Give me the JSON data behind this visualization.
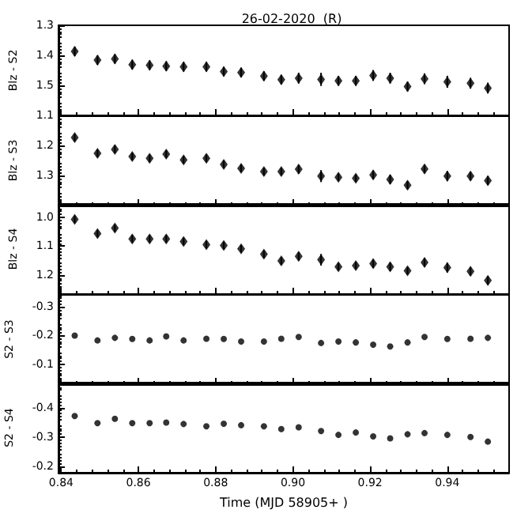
{
  "chart_data": [
    {
      "type": "scatter",
      "title": "26-02-2020  (R)",
      "ylabel": "Blz - S2",
      "marker": "diamond",
      "tick_labels": "y",
      "xlim": [
        0.8393,
        0.956
      ],
      "xticks": [
        0.84,
        0.86,
        0.88,
        0.9,
        0.92,
        0.94
      ],
      "ylim": [
        1.6,
        1.3
      ],
      "yticks": [
        1.3,
        1.4,
        1.5
      ],
      "x": [
        0.8435,
        0.8494,
        0.8539,
        0.8584,
        0.8629,
        0.8672,
        0.8717,
        0.8776,
        0.8821,
        0.8866,
        0.8925,
        0.897,
        0.9015,
        0.9073,
        0.9118,
        0.9163,
        0.9208,
        0.9252,
        0.9297,
        0.9341,
        0.94,
        0.946,
        0.9505
      ],
      "values": [
        1.387,
        1.416,
        1.412,
        1.431,
        1.433,
        1.436,
        1.438,
        1.438,
        1.454,
        1.457,
        1.469,
        1.481,
        1.476,
        1.48,
        1.485,
        1.485,
        1.467,
        1.476,
        1.504,
        1.478,
        1.488,
        1.493,
        1.509
      ],
      "errors": [
        0.016,
        0.016,
        0.016,
        0.016,
        0.016,
        0.016,
        0.016,
        0.016,
        0.016,
        0.016,
        0.016,
        0.016,
        0.018,
        0.022,
        0.016,
        0.016,
        0.018,
        0.018,
        0.016,
        0.018,
        0.02,
        0.018,
        0.018
      ]
    },
    {
      "type": "scatter",
      "ylabel": "Blz - S3",
      "marker": "diamond",
      "tick_labels": "y",
      "xlim": [
        0.8393,
        0.956
      ],
      "xticks": [
        0.84,
        0.86,
        0.88,
        0.9,
        0.92,
        0.94
      ],
      "ylim": [
        1.4,
        1.1
      ],
      "yticks": [
        1.1,
        1.2,
        1.3
      ],
      "x": [
        0.8435,
        0.8494,
        0.8539,
        0.8584,
        0.8629,
        0.8672,
        0.8717,
        0.8776,
        0.8821,
        0.8866,
        0.8925,
        0.897,
        0.9015,
        0.9073,
        0.9118,
        0.9163,
        0.9208,
        0.9252,
        0.9297,
        0.9341,
        0.94,
        0.946,
        0.9505
      ],
      "values": [
        1.174,
        1.226,
        1.213,
        1.237,
        1.243,
        1.229,
        1.248,
        1.243,
        1.263,
        1.276,
        1.287,
        1.287,
        1.279,
        1.302,
        1.306,
        1.309,
        1.298,
        1.313,
        1.332,
        1.278,
        1.302,
        1.302,
        1.317
      ],
      "errors": [
        0.013,
        0.013,
        0.013,
        0.013,
        0.013,
        0.013,
        0.013,
        0.013,
        0.013,
        0.013,
        0.013,
        0.013,
        0.015,
        0.02,
        0.013,
        0.013,
        0.015,
        0.015,
        0.013,
        0.015,
        0.017,
        0.015,
        0.015
      ]
    },
    {
      "type": "scatter",
      "ylabel": "Blz - S4",
      "marker": "diamond",
      "tick_labels": "y",
      "xlim": [
        0.8393,
        0.956
      ],
      "xticks": [
        0.84,
        0.86,
        0.88,
        0.9,
        0.92,
        0.94
      ],
      "ylim": [
        1.265,
        0.955
      ],
      "yticks": [
        {
          "value": 1.0,
          "label": "1.0"
        },
        1.1,
        1.2
      ],
      "x": [
        0.8435,
        0.8494,
        0.8539,
        0.8584,
        0.8629,
        0.8672,
        0.8717,
        0.8776,
        0.8821,
        0.8866,
        0.8925,
        0.897,
        0.9015,
        0.9073,
        0.9118,
        0.9163,
        0.9208,
        0.9252,
        0.9297,
        0.9341,
        0.94,
        0.946,
        0.9505
      ],
      "values": [
        1.008,
        1.057,
        1.038,
        1.075,
        1.075,
        1.075,
        1.084,
        1.095,
        1.098,
        1.109,
        1.128,
        1.151,
        1.135,
        1.147,
        1.171,
        1.167,
        1.16,
        1.171,
        1.185,
        1.156,
        1.174,
        1.187,
        1.218
      ],
      "errors": [
        0.013,
        0.013,
        0.013,
        0.013,
        0.013,
        0.013,
        0.013,
        0.013,
        0.013,
        0.013,
        0.013,
        0.013,
        0.015,
        0.02,
        0.013,
        0.013,
        0.015,
        0.015,
        0.013,
        0.015,
        0.017,
        0.015,
        0.015
      ]
    },
    {
      "type": "scatter",
      "ylabel": "S2 - S3",
      "marker": "circle",
      "tick_labels": "y",
      "xlim": [
        0.8393,
        0.956
      ],
      "xticks": [
        0.84,
        0.86,
        0.88,
        0.9,
        0.92,
        0.94
      ],
      "ylim": [
        -0.03,
        -0.345
      ],
      "yticks": [
        -0.3,
        -0.2,
        -0.1
      ],
      "x": [
        0.8435,
        0.8494,
        0.8539,
        0.8584,
        0.8629,
        0.8672,
        0.8717,
        0.8776,
        0.8821,
        0.8866,
        0.8925,
        0.897,
        0.9015,
        0.9073,
        0.9118,
        0.9163,
        0.9208,
        0.9252,
        0.9297,
        0.9341,
        0.94,
        0.946,
        0.9505
      ],
      "values": [
        -0.2,
        -0.183,
        -0.192,
        -0.188,
        -0.183,
        -0.197,
        -0.183,
        -0.189,
        -0.188,
        -0.179,
        -0.179,
        -0.189,
        -0.195,
        -0.174,
        -0.179,
        -0.176,
        -0.168,
        -0.162,
        -0.176,
        -0.195,
        -0.188,
        -0.189,
        -0.192
      ]
    },
    {
      "type": "scatter",
      "ylabel": "S2 - S4",
      "xlabel": "Time (MJD 58905+ )",
      "marker": "circle",
      "xlim": [
        0.8393,
        0.956
      ],
      "xticks": [
        0.84,
        0.86,
        0.88,
        {
          "value": 0.9,
          "label": "0.90"
        },
        0.92,
        0.94
      ],
      "ylim": [
        -0.178,
        -0.485
      ],
      "yticks": [
        -0.4,
        -0.3,
        -0.2
      ],
      "x": [
        0.8435,
        0.8494,
        0.8539,
        0.8584,
        0.8629,
        0.8672,
        0.8717,
        0.8776,
        0.8821,
        0.8866,
        0.8925,
        0.897,
        0.9015,
        0.9073,
        0.9118,
        0.9163,
        0.9208,
        0.9252,
        0.9297,
        0.9341,
        0.94,
        0.946,
        0.9505
      ],
      "values": [
        -0.371,
        -0.347,
        -0.362,
        -0.347,
        -0.347,
        -0.349,
        -0.344,
        -0.336,
        -0.345,
        -0.34,
        -0.336,
        -0.327,
        -0.333,
        -0.32,
        -0.307,
        -0.315,
        -0.302,
        -0.295,
        -0.309,
        -0.313,
        -0.307,
        -0.3,
        -0.284
      ]
    }
  ]
}
